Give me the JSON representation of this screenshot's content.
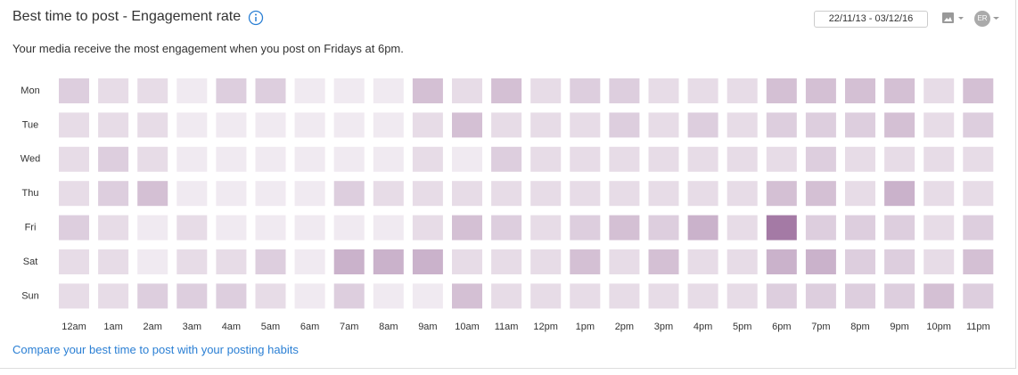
{
  "header": {
    "title": "Best time to post - Engagement rate",
    "date_range": "22/11/13 - 03/12/16",
    "avatar": "ER"
  },
  "subtitle": "Your media receive the most engagement when you post on Fridays at 6pm.",
  "link": "Compare your best time to post with your posting habits",
  "chart_data": {
    "type": "heatmap",
    "x": [
      "12am",
      "1am",
      "2am",
      "3am",
      "4am",
      "5am",
      "6am",
      "7am",
      "8am",
      "9am",
      "10am",
      "11am",
      "12pm",
      "1pm",
      "2pm",
      "3pm",
      "4pm",
      "5pm",
      "6pm",
      "7pm",
      "8pm",
      "9pm",
      "10pm",
      "11pm"
    ],
    "y": [
      "Mon",
      "Tue",
      "Wed",
      "Thu",
      "Fri",
      "Sat",
      "Sun"
    ],
    "values": [
      [
        3,
        2,
        2,
        1,
        3,
        3,
        1,
        1,
        1,
        4,
        2,
        4,
        2,
        3,
        3,
        2,
        2,
        2,
        4,
        4,
        4,
        4,
        2,
        4
      ],
      [
        2,
        2,
        2,
        1,
        1,
        1,
        1,
        1,
        1,
        2,
        4,
        2,
        2,
        2,
        3,
        2,
        3,
        2,
        3,
        3,
        3,
        4,
        2,
        3
      ],
      [
        2,
        3,
        2,
        1,
        1,
        1,
        1,
        1,
        1,
        2,
        1,
        3,
        2,
        2,
        2,
        2,
        2,
        2,
        2,
        3,
        2,
        2,
        2,
        2
      ],
      [
        2,
        3,
        4,
        1,
        1,
        1,
        1,
        3,
        2,
        2,
        2,
        2,
        2,
        2,
        2,
        2,
        2,
        2,
        4,
        4,
        2,
        5,
        2,
        2
      ],
      [
        3,
        2,
        1,
        2,
        1,
        1,
        1,
        1,
        1,
        2,
        4,
        3,
        2,
        3,
        4,
        3,
        5,
        2,
        9,
        3,
        3,
        3,
        2,
        3
      ],
      [
        2,
        2,
        1,
        2,
        2,
        3,
        1,
        5,
        5,
        5,
        2,
        2,
        2,
        4,
        2,
        4,
        2,
        2,
        5,
        5,
        3,
        3,
        2,
        4
      ],
      [
        2,
        2,
        3,
        3,
        3,
        2,
        1,
        3,
        1,
        1,
        4,
        2,
        2,
        2,
        2,
        2,
        2,
        2,
        3,
        3,
        3,
        3,
        4,
        3
      ]
    ],
    "zlim": [
      0,
      10
    ],
    "colors": [
      "#faf8fa",
      "#9a6c9b"
    ]
  }
}
